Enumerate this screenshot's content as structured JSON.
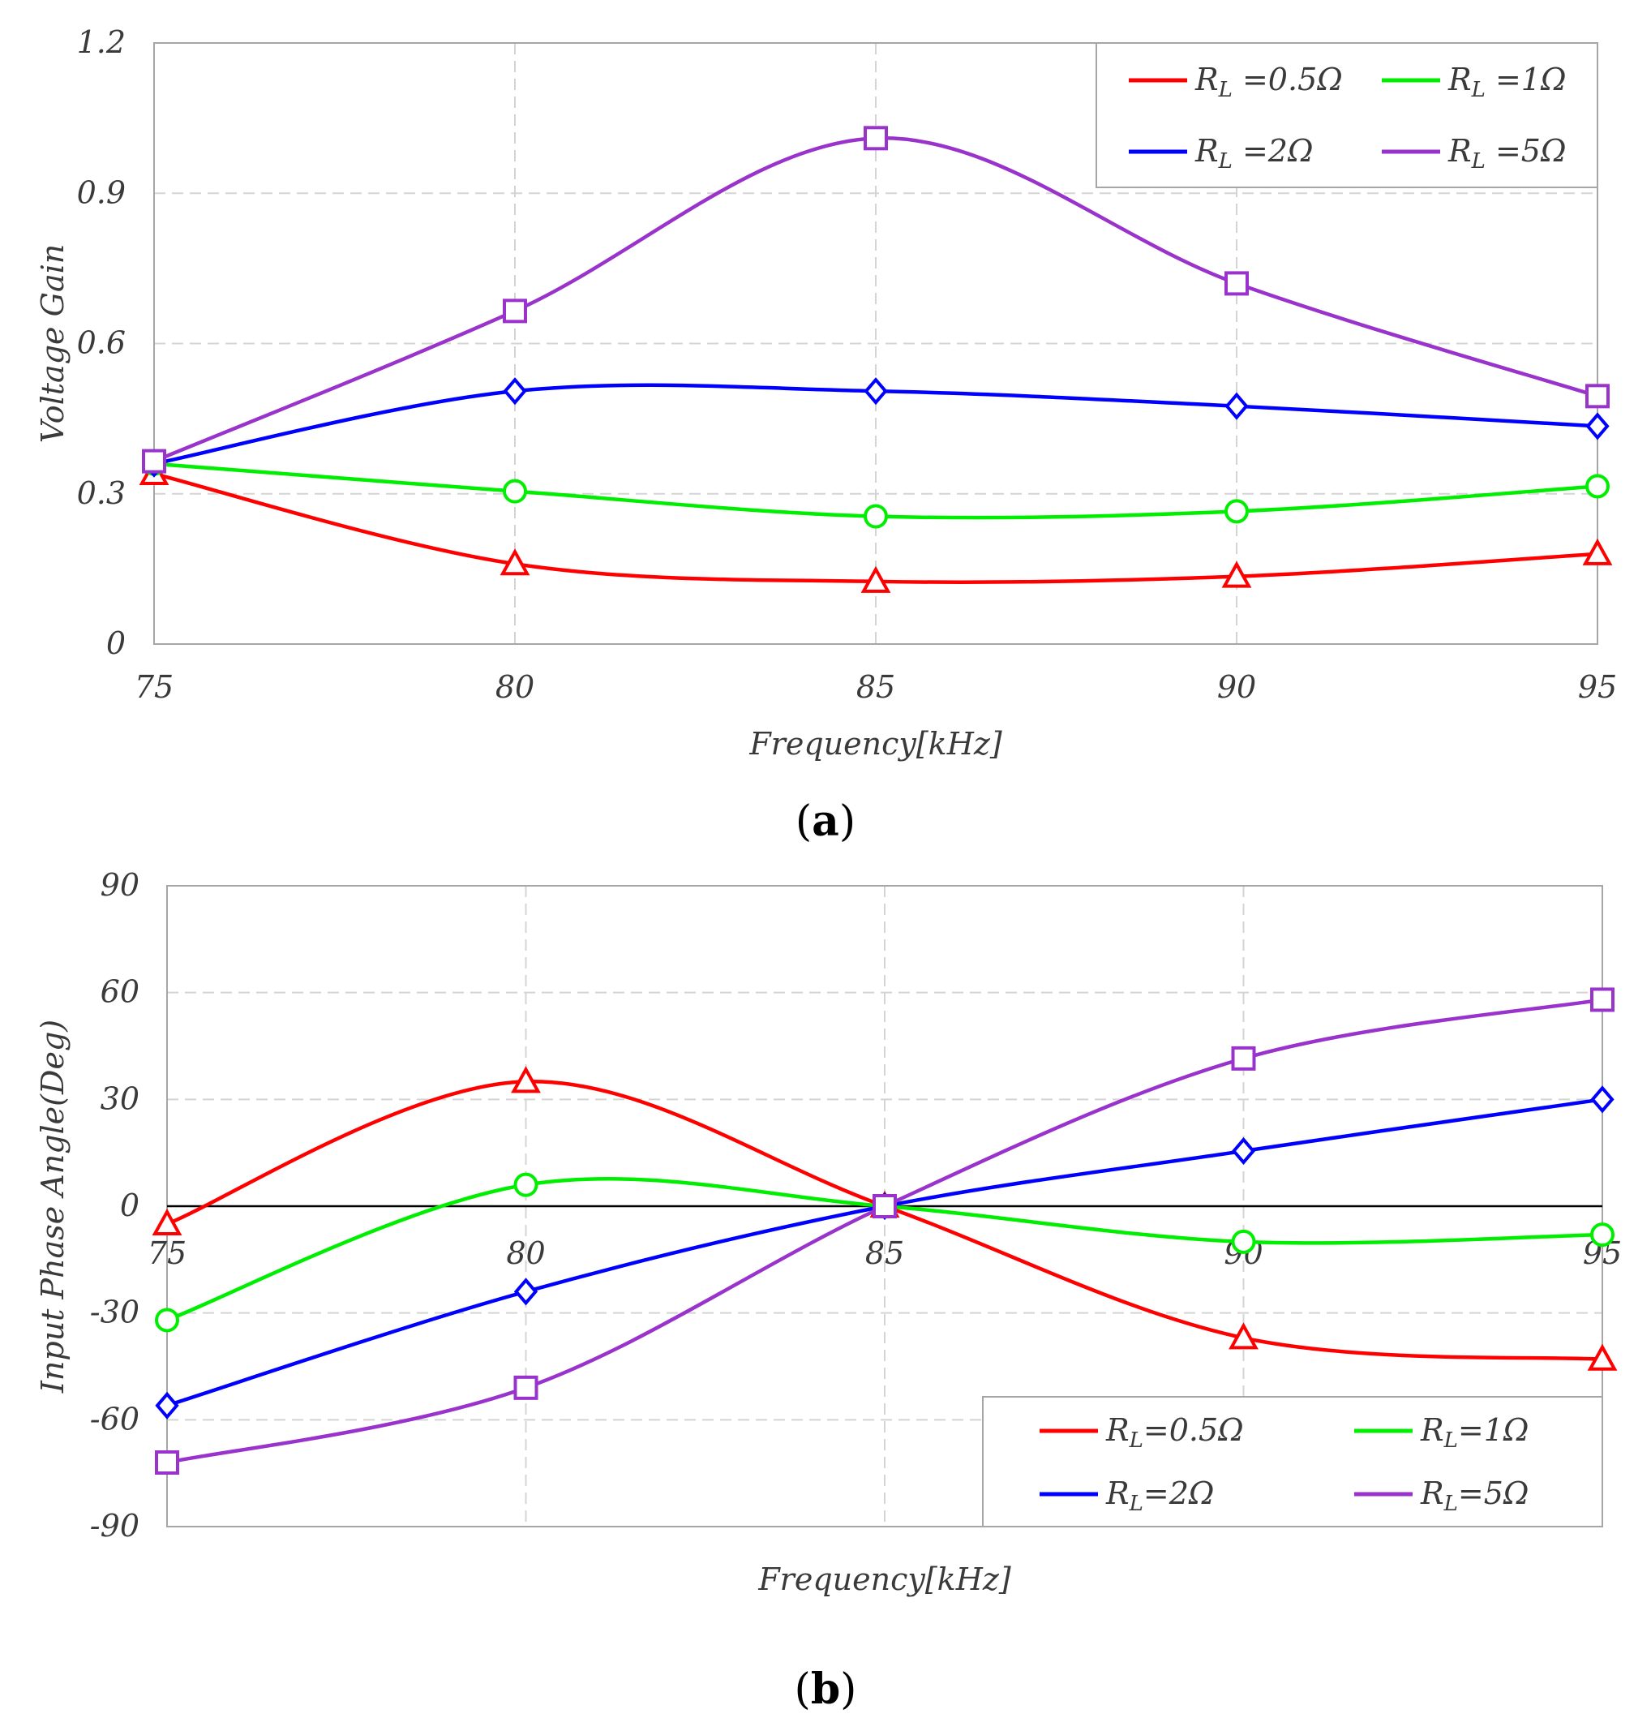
{
  "chart_data": [
    {
      "type": "line",
      "panel_label": "a",
      "xlabel": "Frequency[kHz]",
      "ylabel": "Voltage Gain",
      "xlim": [
        75,
        95
      ],
      "ylim": [
        0,
        1.2
      ],
      "x_ticks": [
        "75",
        "80",
        "85",
        "90",
        "95"
      ],
      "y_ticks": [
        "0",
        "0.3",
        "0.6",
        "0.9",
        "1.2"
      ],
      "grid": true,
      "legend_position": "top-right",
      "x": [
        75,
        80,
        85,
        90,
        95
      ],
      "series": [
        {
          "name": "R_L=0.5Ω",
          "label_base": "R",
          "label_sub": "L",
          "label_tail": " =0.5Ω",
          "color": "#ff0000",
          "marker": "triangle",
          "values": [
            0.34,
            0.16,
            0.125,
            0.135,
            0.18
          ]
        },
        {
          "name": "R_L=1Ω",
          "label_base": "R",
          "label_sub": "L",
          "label_tail": " =1Ω",
          "color": "#00ee00",
          "marker": "circle",
          "values": [
            0.36,
            0.305,
            0.255,
            0.265,
            0.315
          ]
        },
        {
          "name": "R_L=2Ω",
          "label_base": "R",
          "label_sub": "L",
          "label_tail": " =2Ω",
          "color": "#0000ff",
          "marker": "diamond",
          "values": [
            0.36,
            0.505,
            0.505,
            0.475,
            0.435
          ]
        },
        {
          "name": "R_L=5Ω",
          "label_base": "R",
          "label_sub": "L",
          "label_tail": " =5Ω",
          "color": "#9933cc",
          "marker": "square",
          "values": [
            0.365,
            0.665,
            1.01,
            0.72,
            0.495
          ]
        }
      ]
    },
    {
      "type": "line",
      "panel_label": "b",
      "xlabel": "Frequency[kHz]",
      "ylabel": "Input Phase Angle(Deg)",
      "xlim": [
        75,
        95
      ],
      "ylim": [
        -90,
        90
      ],
      "x_ticks": [
        "75",
        "80",
        "85",
        "90",
        "95"
      ],
      "y_ticks": [
        "-90",
        "-60",
        "-30",
        "0",
        "30",
        "60",
        "90"
      ],
      "grid": true,
      "legend_position": "bottom-right",
      "x": [
        75,
        80,
        85,
        90,
        95
      ],
      "series": [
        {
          "name": "R_L=0.5Ω",
          "label_base": "R",
          "label_sub": "L",
          "label_tail": "=0.5Ω",
          "color": "#ff0000",
          "marker": "triangle",
          "values": [
            -5,
            35,
            0,
            -37,
            -43
          ]
        },
        {
          "name": "R_L=1Ω",
          "label_base": "R",
          "label_sub": "L",
          "label_tail": "=1Ω",
          "color": "#00ee00",
          "marker": "circle",
          "values": [
            -32,
            6,
            0,
            -10,
            -8
          ]
        },
        {
          "name": "R_L=2Ω",
          "label_base": "R",
          "label_sub": "L",
          "label_tail": "=2Ω",
          "color": "#0000ff",
          "marker": "diamond",
          "values": [
            -56,
            -24,
            0,
            15.5,
            30
          ]
        },
        {
          "name": "R_L=5Ω",
          "label_base": "R",
          "label_sub": "L",
          "label_tail": "=5Ω",
          "color": "#9933cc",
          "marker": "square",
          "values": [
            -72,
            -51,
            0,
            41.5,
            58
          ]
        }
      ]
    }
  ]
}
